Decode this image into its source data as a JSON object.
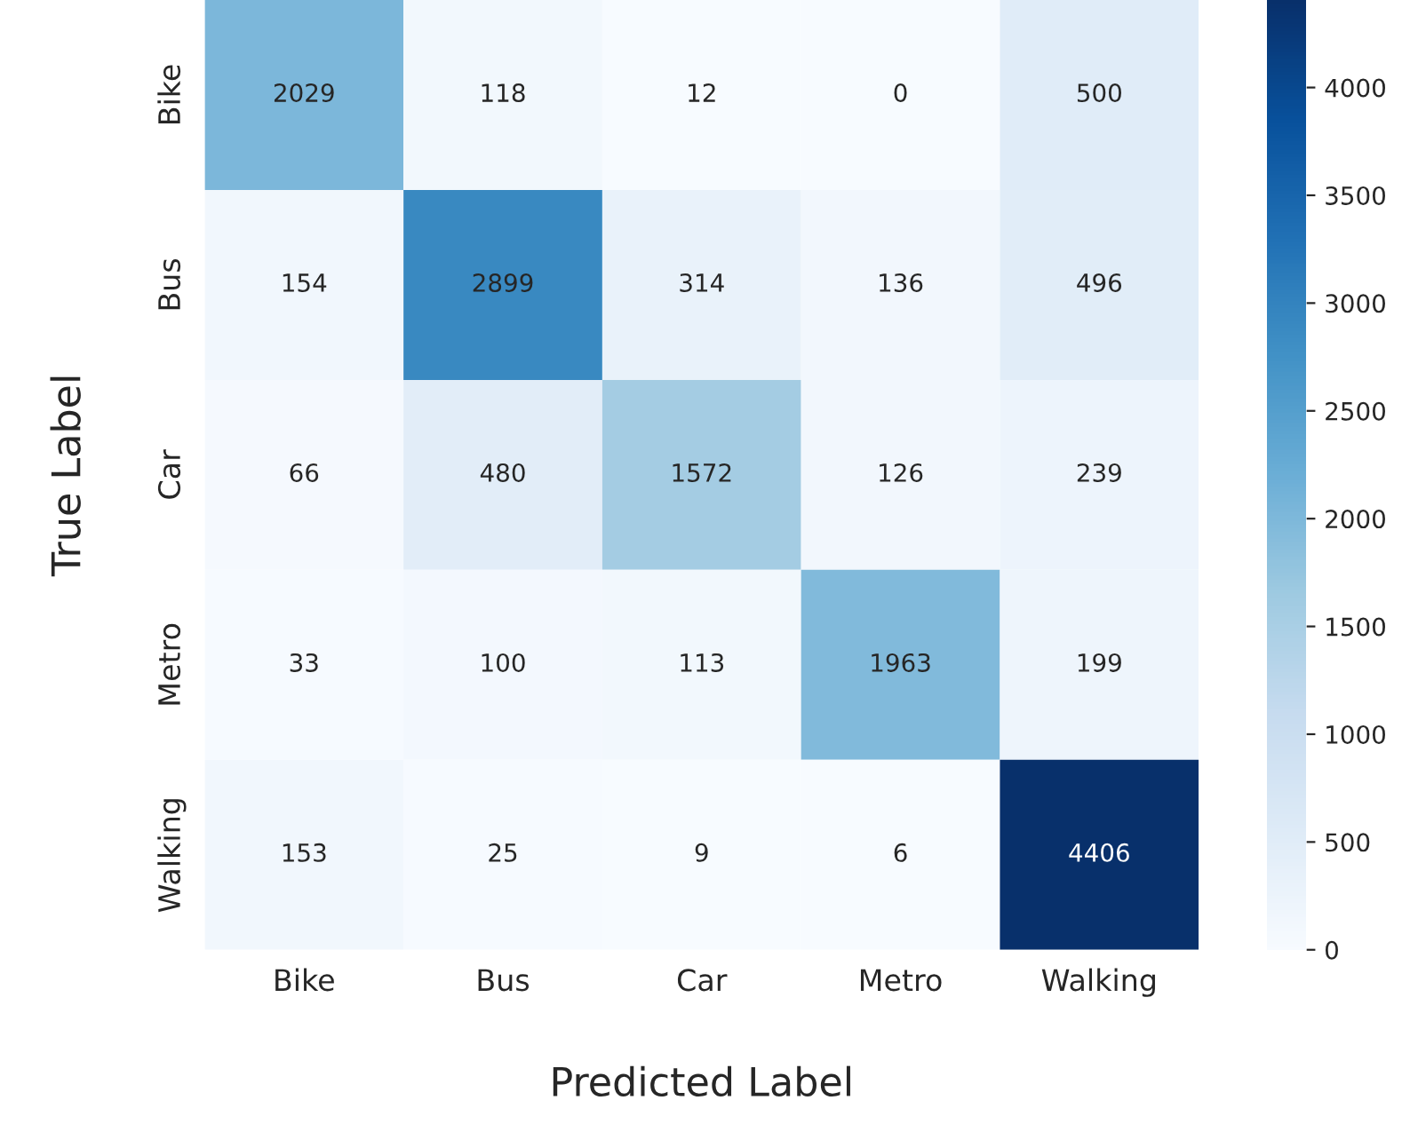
{
  "chart_data": {
    "type": "heatmap",
    "xlabel": "Predicted Label",
    "ylabel": "True Label",
    "categories": [
      "Bike",
      "Bus",
      "Car",
      "Metro",
      "Walking"
    ],
    "y_categories": [
      "Bike",
      "Bus",
      "Car",
      "Metro",
      "Walking"
    ],
    "cells": [
      [
        2029,
        118,
        12,
        0,
        500
      ],
      [
        154,
        2899,
        314,
        136,
        496
      ],
      [
        66,
        480,
        1572,
        126,
        239
      ],
      [
        33,
        100,
        113,
        1963,
        199
      ],
      [
        153,
        25,
        9,
        6,
        4406
      ]
    ],
    "clim": [
      0,
      4406
    ],
    "cticks": [
      0,
      500,
      1000,
      1500,
      2000,
      2500,
      3000,
      3500,
      4000
    ],
    "data_labels": true
  }
}
